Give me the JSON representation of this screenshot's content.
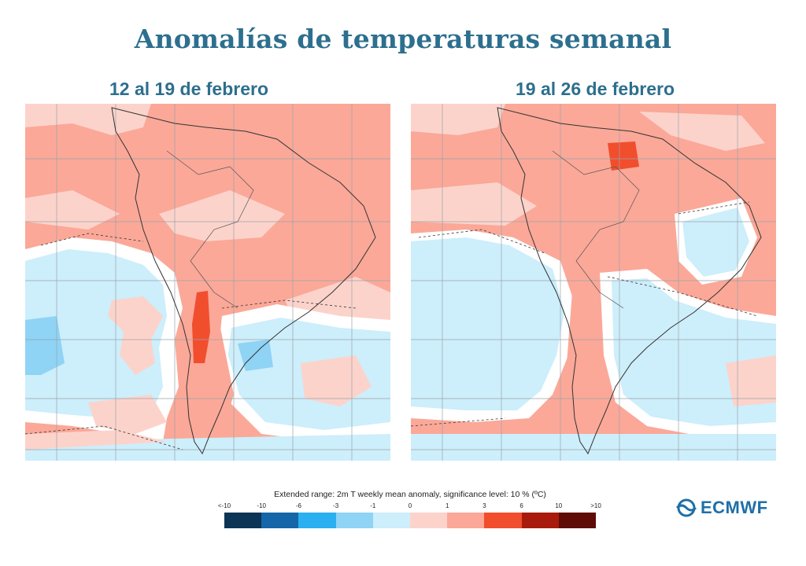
{
  "title": "Anomalías de temperaturas semanal",
  "panels": [
    {
      "subtitle": "12 al 19 de febrero"
    },
    {
      "subtitle": "19 al 26 de febrero"
    }
  ],
  "legend": {
    "title": "Extended range: 2m T weekly mean anomaly, significance level: 10 % (ºC)",
    "tick_labels": [
      "<-10",
      "-10",
      "-6",
      "-3",
      "-1",
      "0",
      "1",
      "3",
      "6",
      "10",
      ">10"
    ],
    "colors": [
      "#0b3455",
      "#1466a8",
      "#2aaff0",
      "#8fd3f5",
      "#cdeefb",
      "#fcd3cb",
      "#fba898",
      "#f14e2e",
      "#a81a0c",
      "#5e0c05"
    ]
  },
  "logo": {
    "text": "ECMWF",
    "icon": "ecmwf-logo-icon"
  },
  "map_colors": {
    "warm_light": "#fcd3cb",
    "warm": "#fba898",
    "warm_strong": "#f14e2e",
    "neutral": "#ffffff",
    "cool": "#cdeefb",
    "cool_mid": "#8fd3f5",
    "grid": "#9aa3a8",
    "coast": "#333333"
  }
}
